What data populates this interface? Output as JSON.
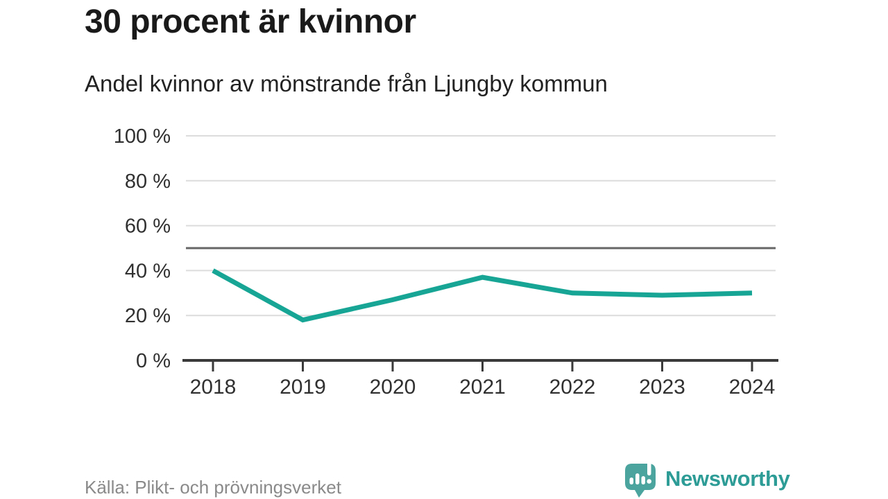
{
  "header": {
    "title": "30 procent är kvinnor",
    "subtitle": "Andel kvinnor av mönstrande från Ljungby kommun"
  },
  "chart_data": {
    "type": "line",
    "title": "30 procent är kvinnor",
    "subtitle": "Andel kvinnor av mönstrande från Ljungby kommun",
    "x": [
      "2018",
      "2019",
      "2020",
      "2021",
      "2022",
      "2023",
      "2024"
    ],
    "values": [
      40,
      18,
      27,
      37,
      30,
      29,
      30
    ],
    "unit": "%",
    "ylim": [
      0,
      100
    ],
    "yticks": [
      0,
      20,
      40,
      60,
      80,
      100
    ],
    "yticklabels": [
      "0 %",
      "20 %",
      "40 %",
      "60 %",
      "80 %",
      "100 %"
    ],
    "reference_line": 50,
    "grid": true,
    "legend": "none",
    "line_color": "#17A695"
  },
  "footer": {
    "source": "Källa: Plikt- och prövningsverket",
    "brand": "Newsworthy"
  },
  "colors": {
    "accent_teal": "#17A695",
    "logo_bubble": "#4BA49E",
    "logo_text": "#2E9C96",
    "title_text": "#1A1A1A",
    "tick_text": "#303030",
    "gridline": "#DCDCDC",
    "reference_line": "#666666",
    "axis": "#3A3A3A",
    "source_text": "#8A8A8A"
  },
  "icons": {
    "logo": "newsworthy-speech-bubble-bar-chart-icon"
  }
}
